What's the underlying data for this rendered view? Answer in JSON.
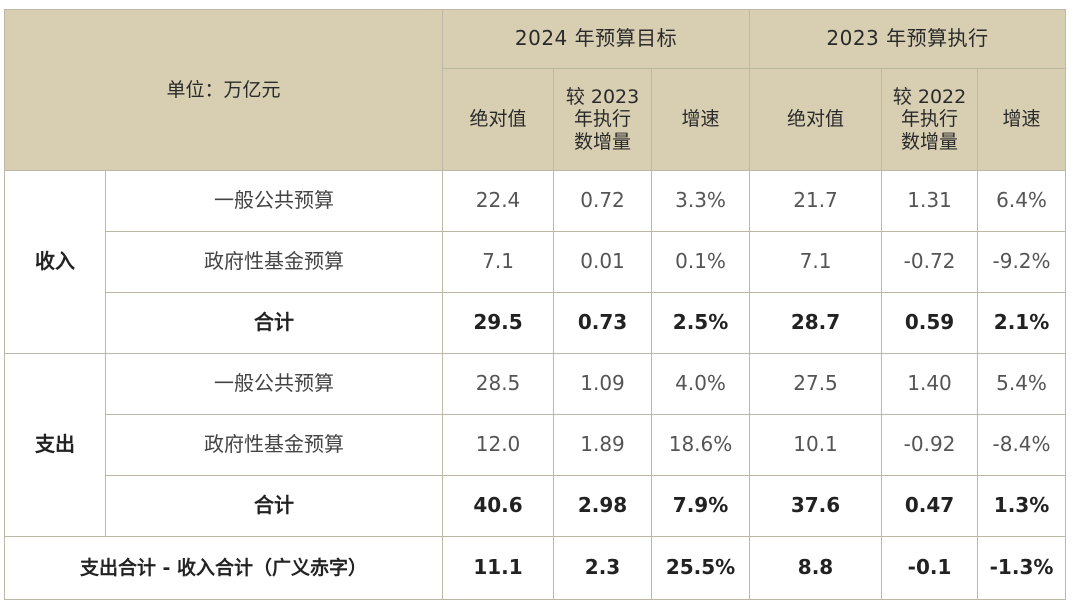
{
  "header": {
    "unit_label": "单位：万亿元",
    "group_2024": "2024 年预算目标",
    "group_2023": "2023 年预算执行",
    "col_2024_abs": "绝对值",
    "col_2024_delta_lines": [
      "较 2023",
      "年执行",
      "数增量"
    ],
    "col_2024_growth": "增速",
    "col_2023_abs": "绝对值",
    "col_2023_delta_lines": [
      "较 2022",
      "年执行",
      "数增量"
    ],
    "col_2023_growth": "增速"
  },
  "sections": [
    {
      "category": "收入",
      "rows": [
        {
          "label": "一般公共预算",
          "values": [
            "22.4",
            "0.72",
            "3.3%",
            "21.7",
            "1.31",
            "6.4%"
          ]
        },
        {
          "label": "政府性基金预算",
          "values": [
            "7.1",
            "0.01",
            "0.1%",
            "7.1",
            "-0.72",
            "-9.2%"
          ]
        },
        {
          "label": "合计",
          "values": [
            "29.5",
            "0.73",
            "2.5%",
            "28.7",
            "0.59",
            "2.1%"
          ]
        }
      ]
    },
    {
      "category": "支出",
      "rows": [
        {
          "label": "一般公共预算",
          "values": [
            "28.5",
            "1.09",
            "4.0%",
            "27.5",
            "1.40",
            "5.4%"
          ]
        },
        {
          "label": "政府性基金预算",
          "values": [
            "12.0",
            "1.89",
            "18.6%",
            "10.1",
            "-0.92",
            "-8.4%"
          ]
        },
        {
          "label": "合计",
          "values": [
            "40.6",
            "2.98",
            "7.9%",
            "37.6",
            "0.47",
            "1.3%"
          ]
        }
      ]
    }
  ],
  "deficit": {
    "label": "支出合计 - 收入合计（广义赤字）",
    "values": [
      "11.1",
      "2.3",
      "25.5%",
      "8.8",
      "-0.1",
      "-1.3%"
    ]
  },
  "colors": {
    "header_bg": "#d8cfb3",
    "border": "#bdb7a6",
    "text": "#555555",
    "bold_text": "#222222"
  }
}
